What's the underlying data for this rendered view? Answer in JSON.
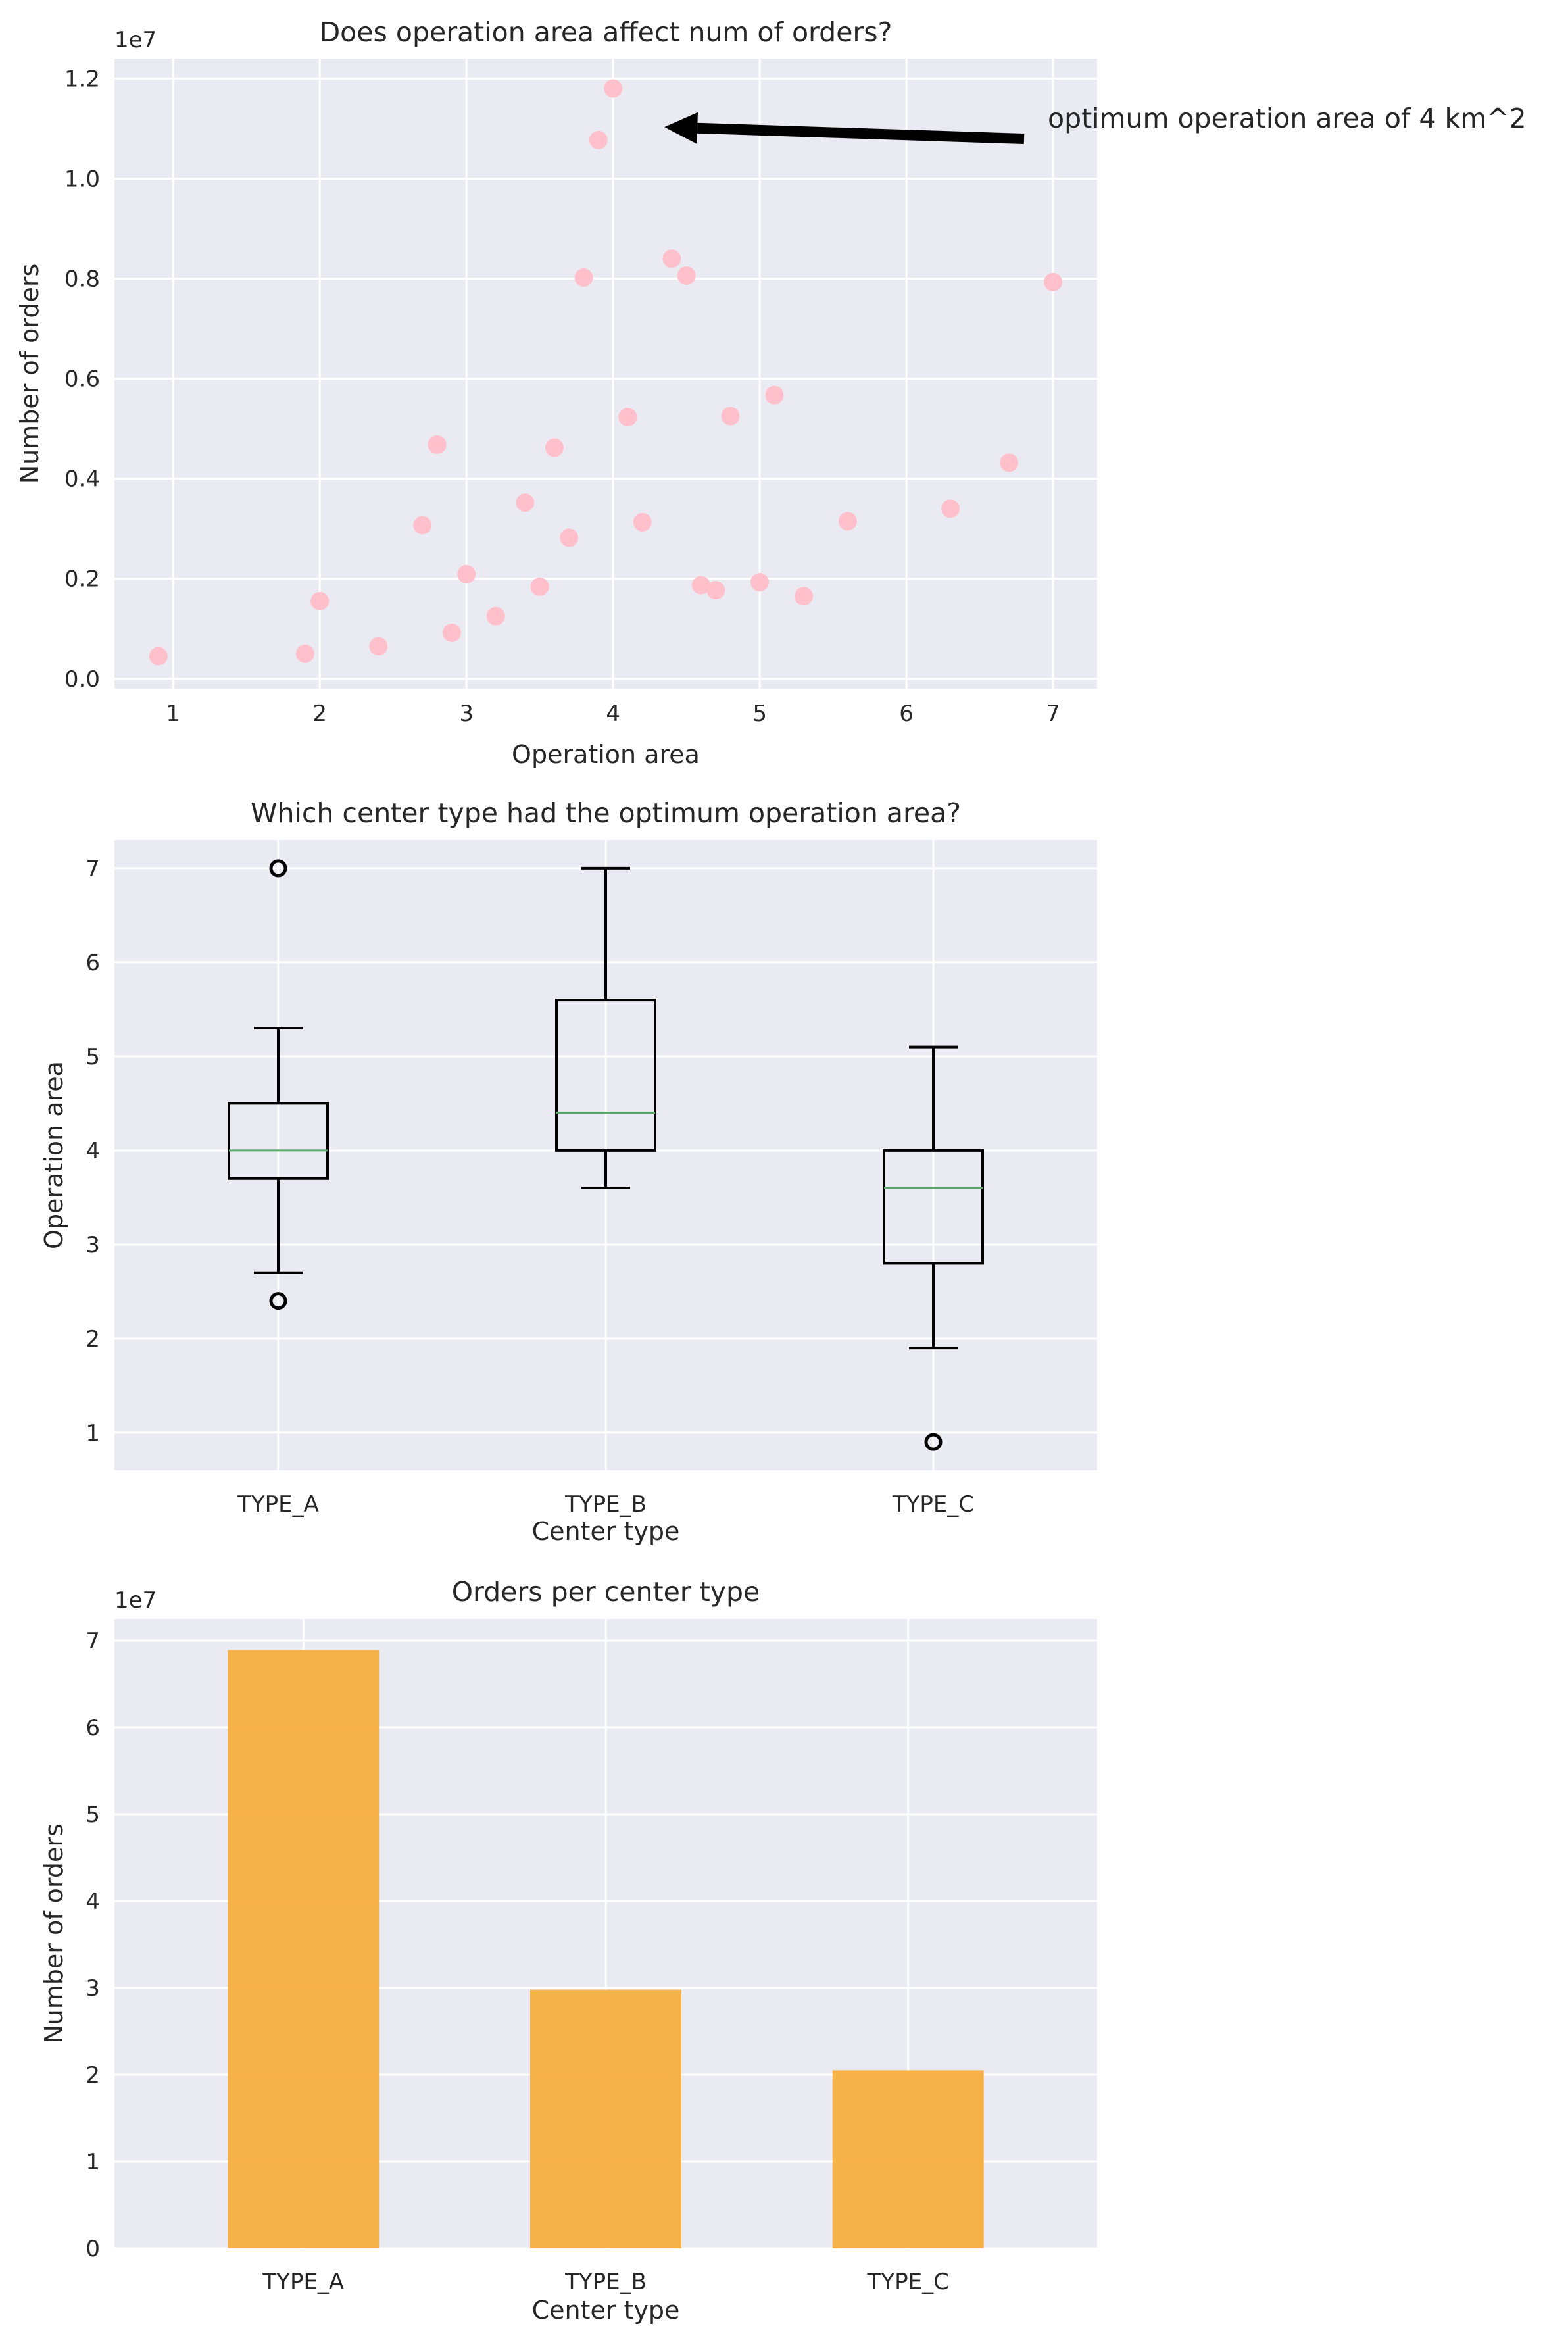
{
  "chart_data": [
    {
      "type": "scatter",
      "title": "Does operation area affect num of orders?",
      "xlabel": "Operation area",
      "ylabel": "Number of orders",
      "y_offset_label": "1e7",
      "xlim": [
        0.6,
        7.3
      ],
      "ylim": [
        -0.02,
        1.24
      ],
      "xticks": [
        1,
        2,
        3,
        4,
        5,
        6,
        7
      ],
      "xtick_labels": [
        "1",
        "2",
        "3",
        "4",
        "5",
        "6",
        "7"
      ],
      "yticks": [
        0.0,
        0.2,
        0.4,
        0.6,
        0.8,
        1.0,
        1.2
      ],
      "ytick_labels": [
        "0.0",
        "0.2",
        "0.4",
        "0.6",
        "0.8",
        "1.0",
        "1.2"
      ],
      "grid": true,
      "marker_color": "#ffc0cb",
      "points": [
        {
          "x": 0.9,
          "y": 0.045
        },
        {
          "x": 1.9,
          "y": 0.05
        },
        {
          "x": 2.0,
          "y": 0.155
        },
        {
          "x": 2.4,
          "y": 0.065
        },
        {
          "x": 2.7,
          "y": 0.307
        },
        {
          "x": 2.8,
          "y": 0.468
        },
        {
          "x": 2.9,
          "y": 0.092
        },
        {
          "x": 3.0,
          "y": 0.209
        },
        {
          "x": 3.2,
          "y": 0.125
        },
        {
          "x": 3.4,
          "y": 0.352
        },
        {
          "x": 3.5,
          "y": 0.184
        },
        {
          "x": 3.6,
          "y": 0.462
        },
        {
          "x": 3.7,
          "y": 0.282
        },
        {
          "x": 3.8,
          "y": 0.802
        },
        {
          "x": 3.9,
          "y": 1.077
        },
        {
          "x": 4.0,
          "y": 1.18
        },
        {
          "x": 4.1,
          "y": 0.523
        },
        {
          "x": 4.2,
          "y": 0.313
        },
        {
          "x": 4.4,
          "y": 0.84
        },
        {
          "x": 4.5,
          "y": 0.806
        },
        {
          "x": 4.6,
          "y": 0.187
        },
        {
          "x": 4.7,
          "y": 0.177
        },
        {
          "x": 4.8,
          "y": 0.525
        },
        {
          "x": 5.0,
          "y": 0.193
        },
        {
          "x": 5.1,
          "y": 0.567
        },
        {
          "x": 5.3,
          "y": 0.165
        },
        {
          "x": 5.6,
          "y": 0.315
        },
        {
          "x": 6.3,
          "y": 0.34
        },
        {
          "x": 6.7,
          "y": 0.432
        },
        {
          "x": 7.0,
          "y": 0.793
        }
      ],
      "annotation": {
        "text": "optimum operation area of 4 km^2",
        "xy": [
          4.35,
          1.103
        ],
        "xytext": [
          7.0,
          1.09
        ]
      }
    },
    {
      "type": "box",
      "title": "Which center type had the optimum operation area?",
      "xlabel": "Center type",
      "ylabel": "Operation area",
      "ylim": [
        0.6,
        7.3
      ],
      "yticks": [
        1,
        2,
        3,
        4,
        5,
        6,
        7
      ],
      "ytick_labels": [
        "1",
        "2",
        "3",
        "4",
        "5",
        "6",
        "7"
      ],
      "categories": [
        "TYPE_A",
        "TYPE_B",
        "TYPE_C"
      ],
      "grid": true,
      "median_color": "#55a868",
      "boxes": [
        {
          "whislo": 2.7,
          "q1": 3.7,
          "med": 4.0,
          "q3": 4.5,
          "whishi": 5.3,
          "fliers": [
            2.4,
            7.0
          ]
        },
        {
          "whislo": 3.6,
          "q1": 4.0,
          "med": 4.4,
          "q3": 5.6,
          "whishi": 7.0,
          "fliers": []
        },
        {
          "whislo": 1.9,
          "q1": 2.8,
          "med": 3.6,
          "q3": 4.0,
          "whishi": 5.1,
          "fliers": [
            0.9
          ]
        }
      ]
    },
    {
      "type": "bar",
      "title": "Orders per center type",
      "xlabel": "Center type",
      "ylabel": "Number of orders",
      "y_offset_label": "1e7",
      "categories": [
        "TYPE_A",
        "TYPE_B",
        "TYPE_C"
      ],
      "values": [
        6.89,
        2.98,
        2.05
      ],
      "ylim": [
        0,
        7.25
      ],
      "yticks": [
        0,
        1,
        2,
        3,
        4,
        5,
        6,
        7
      ],
      "ytick_labels": [
        "0",
        "1",
        "2",
        "3",
        "4",
        "5",
        "6",
        "7"
      ],
      "grid": true,
      "bar_color": "#f5ac3a"
    }
  ]
}
